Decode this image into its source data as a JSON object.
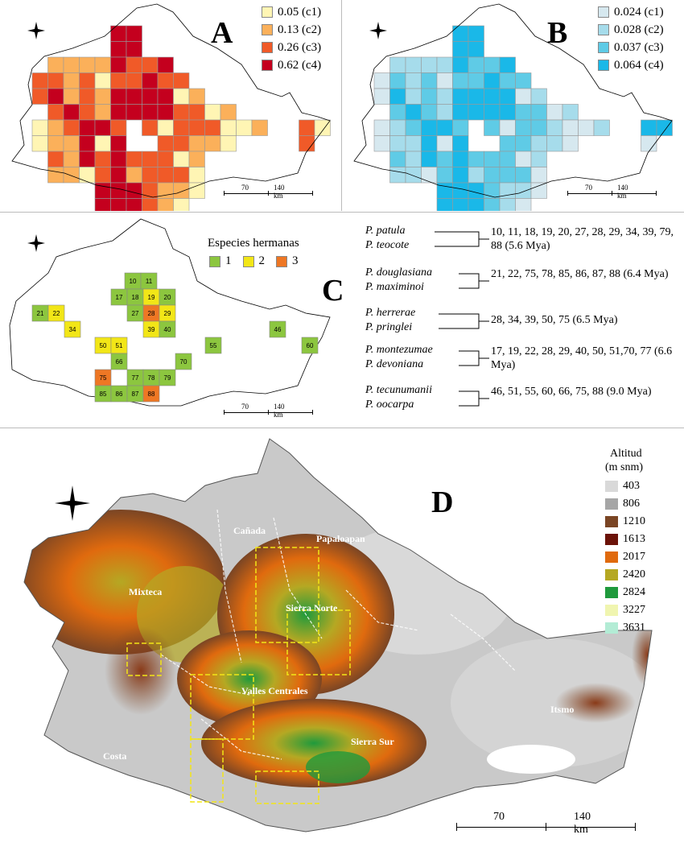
{
  "panels": {
    "a": {
      "letter": "A",
      "legend": [
        {
          "label": "0.05 (c1)",
          "color": "#fff5b4"
        },
        {
          "label": "0.13 (c2)",
          "color": "#fbb05a"
        },
        {
          "label": "0.26 (c3)",
          "color": "#f05a28"
        },
        {
          "label": "0.62 (c4)",
          "color": "#c4001e"
        }
      ],
      "scale": {
        "mid": "70",
        "end": "140 km"
      }
    },
    "b": {
      "letter": "B",
      "legend": [
        {
          "label": "0.024 (c1)",
          "color": "#d6e8ef"
        },
        {
          "label": "0.028 (c2)",
          "color": "#a6dceb"
        },
        {
          "label": "0.037 (c3)",
          "color": "#5fcbe6"
        },
        {
          "label": "0.064 (c4)",
          "color": "#1ab8e8"
        }
      ],
      "scale": {
        "mid": "70",
        "end": "140 km"
      }
    },
    "c": {
      "letter": "C",
      "legend_title": "Especies hermanas",
      "legend": [
        {
          "label": "1",
          "color": "#8cc63f"
        },
        {
          "label": "2",
          "color": "#f2e617"
        },
        {
          "label": "3",
          "color": "#ee7724"
        }
      ],
      "scale": {
        "mid": "70",
        "end": "140 km"
      },
      "cells": [
        {
          "n": "10",
          "c": 1
        },
        {
          "n": "11",
          "c": 1
        },
        {
          "n": "17",
          "c": 1
        },
        {
          "n": "18",
          "c": 1
        },
        {
          "n": "19",
          "c": 2
        },
        {
          "n": "20",
          "c": 1
        },
        {
          "n": "21",
          "c": 1
        },
        {
          "n": "22",
          "c": 2
        },
        {
          "n": "27",
          "c": 1
        },
        {
          "n": "28",
          "c": 3
        },
        {
          "n": "29",
          "c": 2
        },
        {
          "n": "34",
          "c": 2
        },
        {
          "n": "39",
          "c": 2
        },
        {
          "n": "40",
          "c": 1
        },
        {
          "n": "46",
          "c": 1
        },
        {
          "n": "50",
          "c": 2
        },
        {
          "n": "51",
          "c": 2
        },
        {
          "n": "55",
          "c": 1
        },
        {
          "n": "60",
          "c": 1
        },
        {
          "n": "66",
          "c": 1
        },
        {
          "n": "70",
          "c": 1
        },
        {
          "n": "75",
          "c": 3
        },
        {
          "n": "77",
          "c": 1
        },
        {
          "n": "78",
          "c": 1
        },
        {
          "n": "79",
          "c": 1
        },
        {
          "n": "85",
          "c": 1
        },
        {
          "n": "86",
          "c": 1
        },
        {
          "n": "87",
          "c": 1
        },
        {
          "n": "88",
          "c": 3
        }
      ],
      "pairs": [
        {
          "sp1": "P. patula",
          "sp2": "P. teocote",
          "cells": "10, 11, 18, 19, 20, 27, 28, 29, 34, 39, 79, 88 (5.6 Mya)"
        },
        {
          "sp1": "P. douglasiana",
          "sp2": "P. maximinoi",
          "cells": "21, 22, 75, 78, 85, 86, 87, 88 (6.4 Mya)"
        },
        {
          "sp1": "P. herrerae",
          "sp2": "P. pringlei",
          "cells": "28, 34, 39, 50, 75 (6.5 Mya)"
        },
        {
          "sp1": "P. montezumae",
          "sp2": "P. devoniana",
          "cells": "17, 19, 22, 28, 29, 40, 50, 51,70, 77 (6.6 Mya)"
        },
        {
          "sp1": "P. tecunumanii",
          "sp2": "P. oocarpa",
          "cells": "46, 51, 55, 60, 66, 75, 88 (9.0 Mya)"
        }
      ]
    },
    "d": {
      "letter": "D",
      "legend_title_1": "Altitud",
      "legend_title_2": "(m snm)",
      "legend": [
        {
          "label": "403",
          "color": "#d9d9d9"
        },
        {
          "label": "806",
          "color": "#a6a6a6"
        },
        {
          "label": "1210",
          "color": "#7a4524"
        },
        {
          "label": "1613",
          "color": "#6b1208"
        },
        {
          "label": "2017",
          "color": "#e06a0e"
        },
        {
          "label": "2420",
          "color": "#b5a823"
        },
        {
          "label": "2824",
          "color": "#1f9a3c"
        },
        {
          "label": "3227",
          "color": "#f0f5b0"
        },
        {
          "label": "3631",
          "color": "#b3ecd5"
        }
      ],
      "regions": [
        "Cañada",
        "Papaloapan",
        "Mixteca",
        "Sierra Norte",
        "Valles Centrales",
        "Itsmo",
        "Costa",
        "Sierra Sur"
      ],
      "scale": {
        "mid": "70",
        "end": "140 km"
      }
    }
  }
}
